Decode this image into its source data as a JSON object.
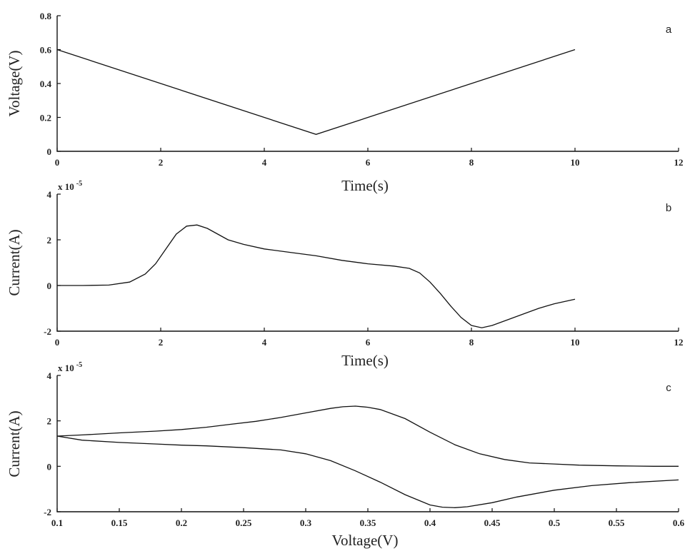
{
  "chart_data": [
    {
      "type": "line",
      "panel_label": "a",
      "xlabel": "Time(s)",
      "ylabel": "Voltage(V)",
      "xlim": [
        0,
        12
      ],
      "ylim": [
        0,
        0.8
      ],
      "xticks": [
        "0",
        "2",
        "4",
        "6",
        "8",
        "10",
        "12"
      ],
      "yticks": [
        "0",
        "0.2",
        "0.4",
        "0.6",
        "0.8"
      ],
      "exponent": "",
      "grid": false,
      "series": [
        {
          "x": [
            0,
            5,
            10
          ],
          "y": [
            0.6,
            0.1,
            0.6
          ]
        }
      ]
    },
    {
      "type": "line",
      "panel_label": "b",
      "xlabel": "Time(s)",
      "ylabel": "Current(A)",
      "xlim": [
        0,
        12
      ],
      "ylim": [
        -2,
        4
      ],
      "xticks": [
        "0",
        "2",
        "4",
        "6",
        "8",
        "10",
        "12"
      ],
      "yticks": [
        "-2",
        "0",
        "2",
        "4"
      ],
      "exponent": "x 10",
      "exponent_power": "-5",
      "grid": false,
      "series": [
        {
          "x": [
            0,
            0.5,
            1.0,
            1.4,
            1.7,
            1.9,
            2.1,
            2.3,
            2.5,
            2.7,
            2.9,
            3.1,
            3.3,
            3.6,
            4.0,
            4.5,
            5.0,
            5.5,
            6.0,
            6.5,
            6.8,
            7.0,
            7.2,
            7.4,
            7.6,
            7.8,
            8.0,
            8.2,
            8.4,
            8.7,
            9.0,
            9.3,
            9.6,
            10.0
          ],
          "y": [
            0.0,
            0.0,
            0.02,
            0.15,
            0.5,
            0.95,
            1.6,
            2.25,
            2.6,
            2.65,
            2.5,
            2.25,
            2.0,
            1.8,
            1.6,
            1.45,
            1.3,
            1.1,
            0.95,
            0.85,
            0.75,
            0.55,
            0.15,
            -0.35,
            -0.9,
            -1.4,
            -1.75,
            -1.85,
            -1.75,
            -1.5,
            -1.25,
            -1.0,
            -0.8,
            -0.6
          ]
        }
      ]
    },
    {
      "type": "line",
      "panel_label": "c",
      "xlabel": "Voltage(V)",
      "ylabel": "Current(A)",
      "xlim": [
        0.1,
        0.6
      ],
      "ylim": [
        -2,
        4
      ],
      "xticks": [
        "0.1",
        "0.15",
        "0.2",
        "0.25",
        "0.3",
        "0.35",
        "0.4",
        "0.45",
        "0.5",
        "0.55",
        "0.6"
      ],
      "yticks": [
        "-2",
        "0",
        "2",
        "4"
      ],
      "exponent": "x 10",
      "exponent_power": "-5",
      "grid": false,
      "series": [
        {
          "x": [
            0.6,
            0.58,
            0.55,
            0.52,
            0.5,
            0.48,
            0.46,
            0.44,
            0.42,
            0.4,
            0.38,
            0.36,
            0.35,
            0.34,
            0.33,
            0.32,
            0.3,
            0.28,
            0.26,
            0.24,
            0.22,
            0.2,
            0.18,
            0.15,
            0.12,
            0.1
          ],
          "y": [
            0.0,
            0.0,
            0.02,
            0.05,
            0.1,
            0.15,
            0.3,
            0.55,
            0.95,
            1.5,
            2.1,
            2.5,
            2.6,
            2.65,
            2.62,
            2.55,
            2.35,
            2.15,
            1.98,
            1.85,
            1.72,
            1.62,
            1.55,
            1.47,
            1.38,
            1.33
          ]
        },
        {
          "x": [
            0.1,
            0.12,
            0.15,
            0.18,
            0.2,
            0.22,
            0.25,
            0.28,
            0.3,
            0.32,
            0.34,
            0.36,
            0.38,
            0.4,
            0.41,
            0.42,
            0.43,
            0.45,
            0.47,
            0.5,
            0.53,
            0.56,
            0.6
          ],
          "y": [
            1.33,
            1.15,
            1.05,
            0.98,
            0.93,
            0.9,
            0.82,
            0.72,
            0.55,
            0.25,
            -0.2,
            -0.7,
            -1.25,
            -1.7,
            -1.8,
            -1.82,
            -1.78,
            -1.6,
            -1.35,
            -1.05,
            -0.85,
            -0.72,
            -0.6
          ]
        }
      ]
    }
  ]
}
